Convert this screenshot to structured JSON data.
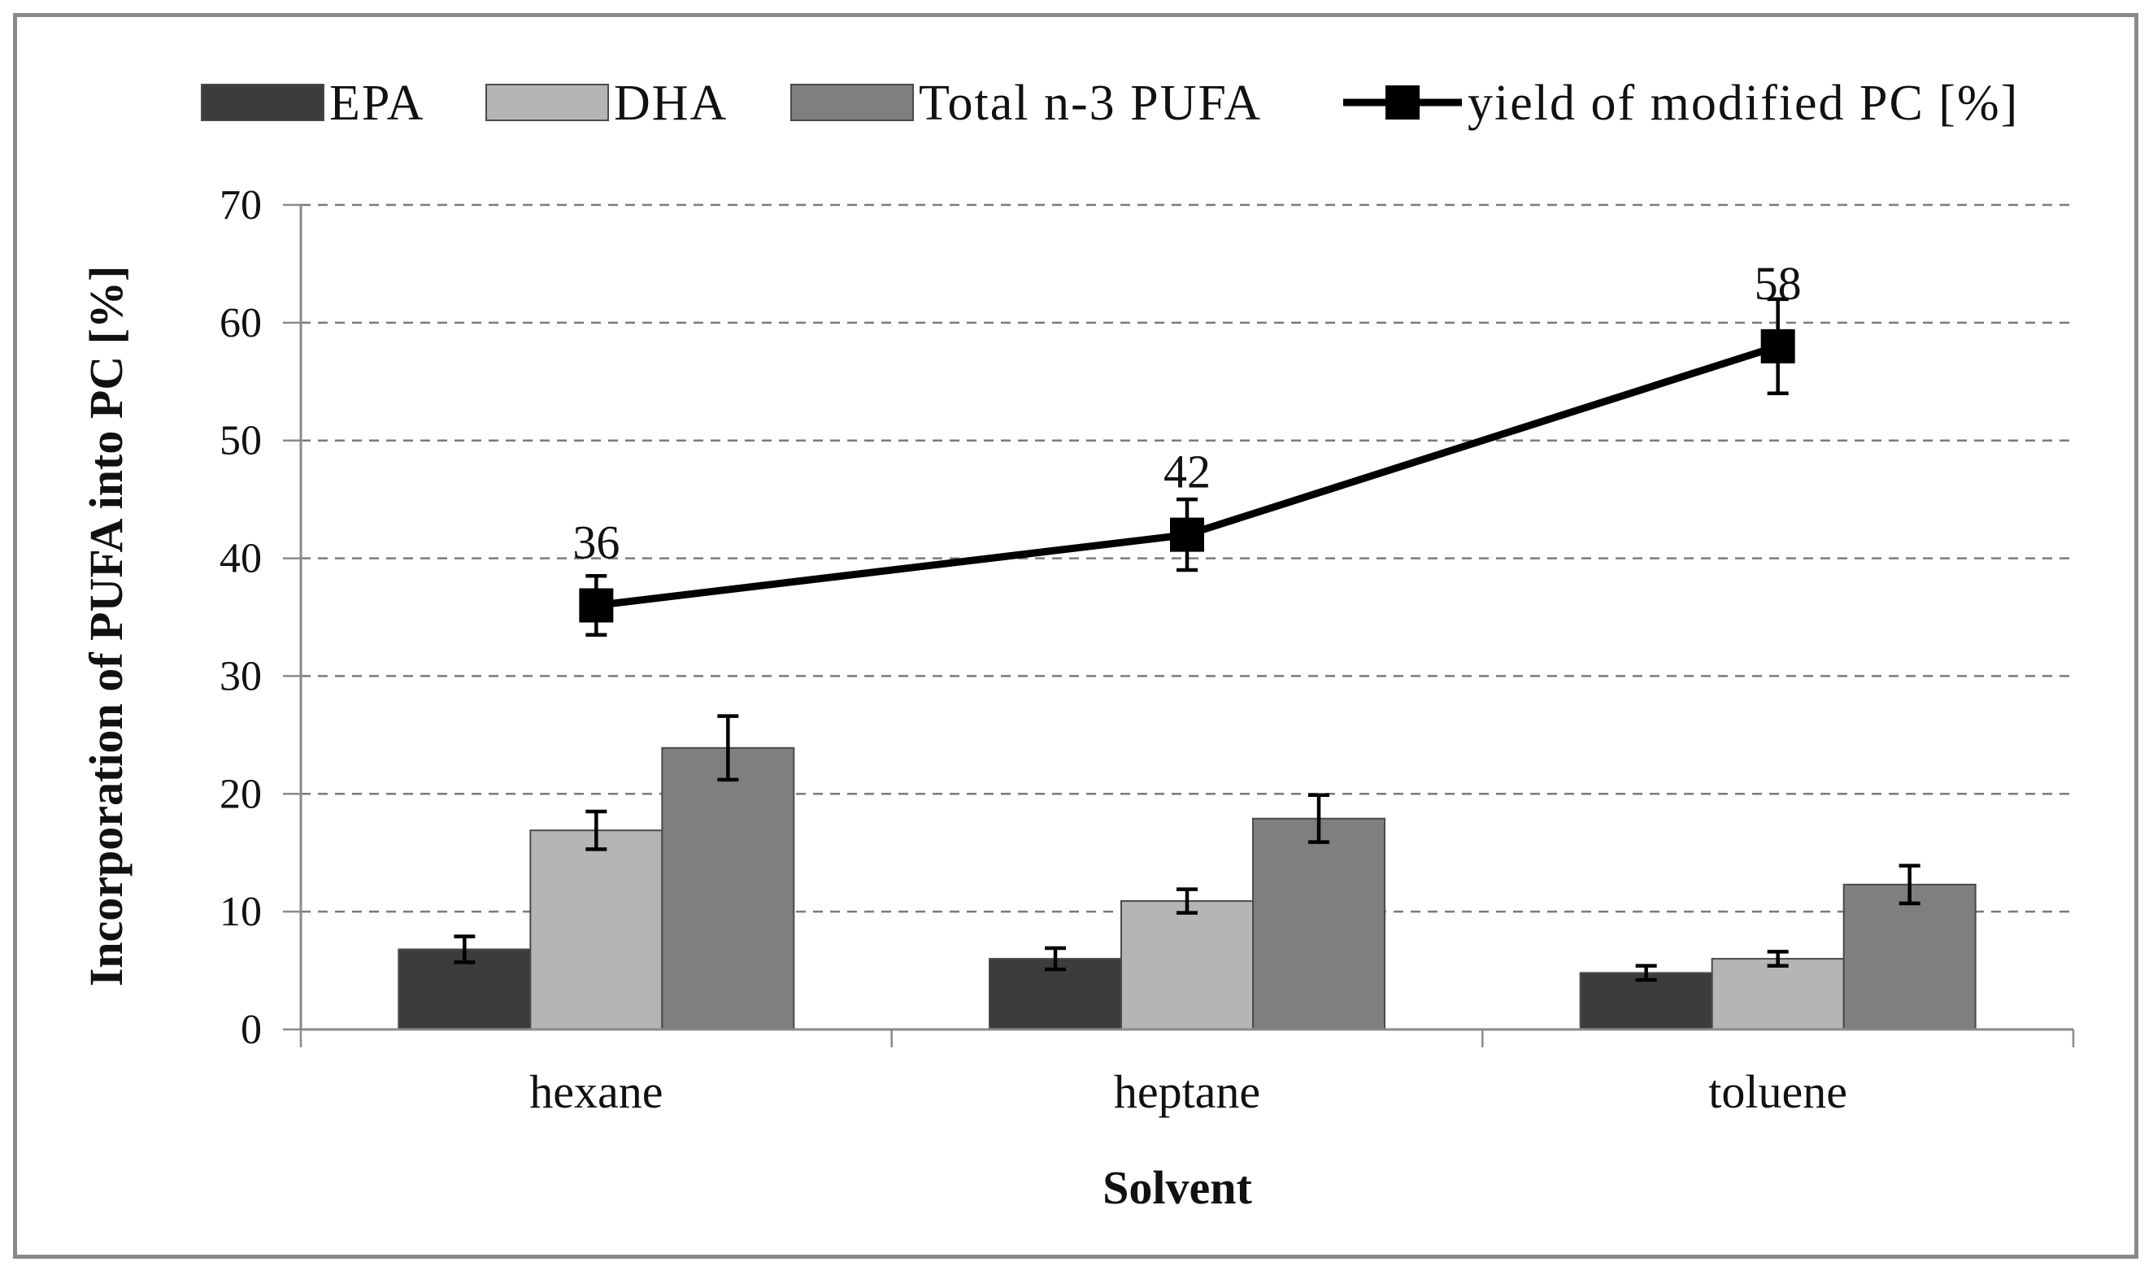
{
  "chart_data": {
    "type": "bar",
    "categories": [
      "hexane",
      "heptane",
      "toluene"
    ],
    "series": [
      {
        "name": "EPA",
        "kind": "bar",
        "color": "#3c3c3c",
        "values": [
          6.8,
          6.0,
          4.8
        ],
        "errors": [
          1.1,
          0.9,
          0.6
        ]
      },
      {
        "name": "DHA",
        "kind": "bar",
        "color": "#b5b5b5",
        "values": [
          16.9,
          10.9,
          6.0
        ],
        "errors": [
          1.6,
          1.0,
          0.6
        ]
      },
      {
        "name": "Total n-3 PUFA",
        "kind": "bar",
        "color": "#7f7f7f",
        "values": [
          23.9,
          17.9,
          12.3
        ],
        "errors": [
          2.7,
          2.0,
          1.6
        ]
      },
      {
        "name": "yield of modified PC [%]",
        "kind": "line",
        "color": "#000000",
        "values": [
          36,
          42,
          58
        ],
        "errors": [
          2.5,
          3.0,
          4.0
        ],
        "data_labels": [
          "36",
          "42",
          "58"
        ]
      }
    ],
    "title": "",
    "xlabel": "Solvent",
    "ylabel": "Incorporation of PUFA into PC [%]",
    "ylim": [
      0,
      70
    ],
    "yticks": [
      0,
      10,
      20,
      30,
      40,
      50,
      60,
      70
    ],
    "ytick_labels": [
      "0",
      "10",
      "20",
      "30",
      "40",
      "50",
      "60",
      "70"
    ],
    "grid": "horizontal dashed",
    "legend_position": "top"
  }
}
